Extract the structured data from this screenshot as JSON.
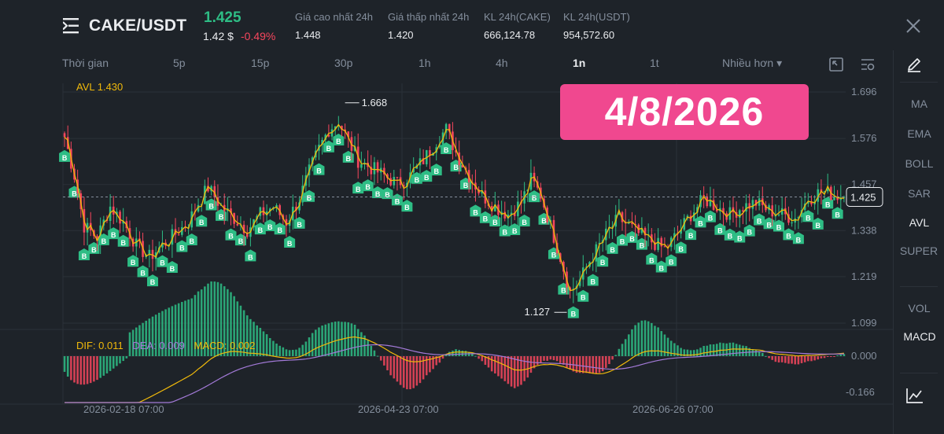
{
  "header": {
    "pair": "CAKE/USDT",
    "last_price": "1.425",
    "usd_price": "1.42 $",
    "change": "-0.49%",
    "stats": [
      {
        "label": "Giá cao nhất 24h",
        "value": "1.448"
      },
      {
        "label": "Giá thấp nhất 24h",
        "value": "1.420"
      },
      {
        "label": "KL 24h(CAKE)",
        "value": "666,124.78"
      },
      {
        "label": "KL 24h(USDT)",
        "value": "954,572.60"
      }
    ]
  },
  "timebar": {
    "items": [
      "Thời gian",
      "5p",
      "15p",
      "30p",
      "1h",
      "4h",
      "1n",
      "1t",
      "Nhiều hơn ▾"
    ],
    "active": "1n"
  },
  "indicators": {
    "items": [
      "MA",
      "EMA",
      "BOLL",
      "SAR",
      "AVL",
      "SUPER",
      "VOL",
      "MACD"
    ],
    "active": [
      "AVL",
      "MACD"
    ]
  },
  "overlay": {
    "date_badge": "4/8/2026",
    "avl_label": "AVL 1.430",
    "high_label": "1.668",
    "low_label": "1.127",
    "current_price_label": "1.425"
  },
  "macd": {
    "dif": "DIF: 0.011",
    "dea": "DEA: 0.009",
    "macd": "MACD: 0.002"
  },
  "chart_data": {
    "type": "candlestick",
    "price_axis_ticks": [
      1.696,
      1.576,
      1.457,
      1.338,
      1.219,
      1.099
    ],
    "price_axis_labels": [
      "1.696",
      "1.576",
      "1.457",
      "1.338",
      "1.219",
      "1.099"
    ],
    "macd_axis_labels": [
      "0.000",
      "-0.166"
    ],
    "x_tick_labels": [
      "2026-02-18 07:00",
      "2026-04-23 07:00",
      "2026-06-26 07:00"
    ],
    "marker_label": "B",
    "close_path": [
      [
        0,
        1.58
      ],
      [
        3,
        1.48
      ],
      [
        6,
        1.35
      ],
      [
        10,
        1.32
      ],
      [
        14,
        1.4
      ],
      [
        18,
        1.36
      ],
      [
        22,
        1.3
      ],
      [
        26,
        1.27
      ],
      [
        30,
        1.3
      ],
      [
        34,
        1.33
      ],
      [
        38,
        1.36
      ],
      [
        41,
        1.41
      ],
      [
        44,
        1.45
      ],
      [
        48,
        1.4
      ],
      [
        52,
        1.37
      ],
      [
        56,
        1.34
      ],
      [
        60,
        1.38
      ],
      [
        64,
        1.4
      ],
      [
        68,
        1.36
      ],
      [
        72,
        1.42
      ],
      [
        75,
        1.49
      ],
      [
        78,
        1.55
      ],
      [
        81,
        1.6
      ],
      [
        84,
        1.62
      ],
      [
        87,
        1.57
      ],
      [
        90,
        1.52
      ],
      [
        94,
        1.5
      ],
      [
        98,
        1.48
      ],
      [
        102,
        1.46
      ],
      [
        106,
        1.48
      ],
      [
        110,
        1.52
      ],
      [
        114,
        1.57
      ],
      [
        117,
        1.6
      ],
      [
        120,
        1.54
      ],
      [
        124,
        1.48
      ],
      [
        128,
        1.43
      ],
      [
        132,
        1.4
      ],
      [
        136,
        1.38
      ],
      [
        140,
        1.41
      ],
      [
        143,
        1.47
      ],
      [
        146,
        1.43
      ],
      [
        149,
        1.35
      ],
      [
        152,
        1.27
      ],
      [
        155,
        1.18
      ],
      [
        158,
        1.21
      ],
      [
        161,
        1.26
      ],
      [
        164,
        1.3
      ],
      [
        167,
        1.34
      ],
      [
        170,
        1.37
      ],
      [
        173,
        1.35
      ],
      [
        176,
        1.33
      ],
      [
        180,
        1.31
      ],
      [
        184,
        1.29
      ],
      [
        188,
        1.33
      ],
      [
        192,
        1.38
      ],
      [
        196,
        1.42
      ],
      [
        200,
        1.4
      ],
      [
        204,
        1.38
      ],
      [
        208,
        1.4
      ],
      [
        212,
        1.41
      ],
      [
        216,
        1.39
      ],
      [
        220,
        1.38
      ],
      [
        224,
        1.37
      ],
      [
        228,
        1.42
      ],
      [
        232,
        1.44
      ],
      [
        236,
        1.43
      ],
      [
        239,
        1.425
      ]
    ],
    "candles": 240,
    "current_price": 1.425,
    "high_marker": 1.668,
    "low_marker": 1.127,
    "macd_range": [
      -0.166,
      0.03
    ]
  }
}
